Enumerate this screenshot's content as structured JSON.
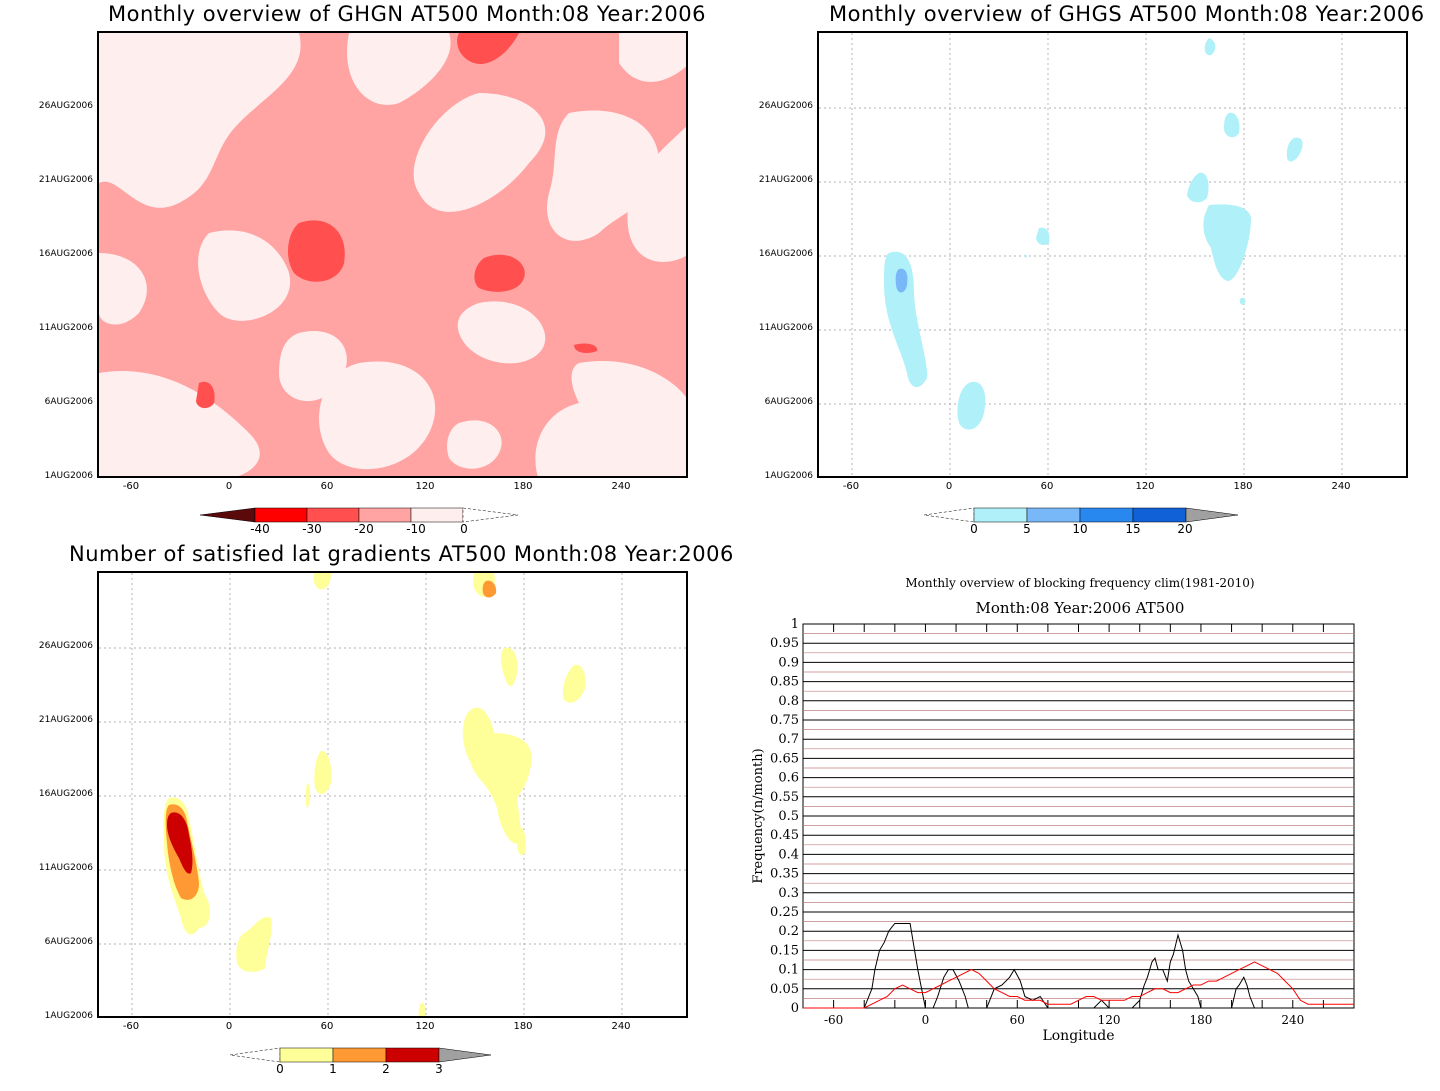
{
  "panels": {
    "ghgn": {
      "title": "Monthly overview of GHGN AT500 Month:08 Year:2006",
      "colorbar": {
        "labels": [
          "-40",
          "-30",
          "-20",
          "-10",
          "0"
        ],
        "colors": [
          "#5a0a0a",
          "#ff0000",
          "#ff4f4f",
          "#ffa3a3",
          "#ffeeee"
        ]
      }
    },
    "ghgs": {
      "title": "Monthly overview of GHGS AT500 Month:08 Year:2006",
      "colorbar": {
        "labels": [
          "0",
          "5",
          "10",
          "15",
          "20"
        ],
        "colors": [
          "#b0f0f8",
          "#78b8f8",
          "#2888f0",
          "#1060d8",
          "#a0a0a0"
        ]
      }
    },
    "latgrad": {
      "title": "Number of satisfied lat gradients AT500 Month:08 Year:2006",
      "colorbar": {
        "labels": [
          "0",
          "1",
          "2",
          "3"
        ],
        "colors": [
          "#ffff99",
          "#ff9933",
          "#cc0000",
          "#a0a0a0"
        ]
      }
    },
    "blocking": {
      "title": "Monthly overview of blocking frequency clim(1981-2010)",
      "subtitle": "Month:08 Year:2006  AT500"
    }
  },
  "chart_data": [
    {
      "type": "heatmap",
      "title": "Monthly overview of GHGN AT500 Month:08 Year:2006",
      "x_ticks": [
        "-60",
        "0",
        "60",
        "120",
        "180",
        "240"
      ],
      "y_ticks": [
        "1AUG2006",
        "6AUG2006",
        "11AUG2006",
        "16AUG2006",
        "21AUG2006",
        "26AUG2006"
      ],
      "xlim": [
        -80,
        280
      ],
      "levels": [
        -40,
        -30,
        -20,
        -10,
        0
      ]
    },
    {
      "type": "heatmap",
      "title": "Monthly overview of GHGS AT500 Month:08 Year:2006",
      "x_ticks": [
        "-60",
        "0",
        "60",
        "120",
        "180",
        "240"
      ],
      "y_ticks": [
        "1AUG2006",
        "6AUG2006",
        "11AUG2006",
        "16AUG2006",
        "21AUG2006",
        "26AUG2006"
      ],
      "xlim": [
        -80,
        280
      ],
      "levels": [
        0,
        5,
        10,
        15,
        20
      ]
    },
    {
      "type": "heatmap",
      "title": "Number of satisfied lat gradients AT500 Month:08 Year:2006",
      "x_ticks": [
        "-60",
        "0",
        "60",
        "120",
        "180",
        "240"
      ],
      "y_ticks": [
        "1AUG2006",
        "6AUG2006",
        "11AUG2006",
        "16AUG2006",
        "21AUG2006",
        "26AUG2006"
      ],
      "xlim": [
        -80,
        280
      ],
      "levels": [
        0,
        1,
        2,
        3
      ]
    },
    {
      "type": "line",
      "title": "Monthly overview of blocking frequency clim(1981-2010)",
      "subtitle": "Month:08 Year:2006  AT500",
      "xlabel": "Longitude",
      "ylabel": "Frequency(n/month)",
      "x_ticks": [
        "-60",
        "0",
        "60",
        "120",
        "180",
        "240"
      ],
      "y_ticks": [
        "0",
        "0.05",
        "0.1",
        "0.15",
        "0.2",
        "0.25",
        "0.3",
        "0.35",
        "0.4",
        "0.45",
        "0.5",
        "0.55",
        "0.6",
        "0.65",
        "0.7",
        "0.75",
        "0.8",
        "0.85",
        "0.9",
        "0.95",
        "1"
      ],
      "xlim": [
        -80,
        280
      ],
      "ylim": [
        0,
        1
      ],
      "series": [
        {
          "color": "#000000",
          "x": [
            -80,
            -40,
            -35,
            -33,
            -30,
            -27,
            -24,
            -20,
            -15,
            -10,
            -5,
            0,
            5,
            8,
            12,
            15,
            18,
            22,
            26,
            28,
            30,
            35,
            40,
            45,
            50,
            55,
            58,
            62,
            65,
            70,
            75,
            80,
            85,
            90,
            100,
            110,
            115,
            120,
            125,
            130,
            135,
            140,
            143,
            145,
            148,
            150,
            152,
            155,
            158,
            160,
            162,
            165,
            168,
            170,
            172,
            175,
            178,
            180,
            183,
            185,
            190,
            195,
            200,
            203,
            205,
            208,
            210,
            212,
            215,
            280
          ],
          "y": [
            0,
            0,
            0.05,
            0.1,
            0.15,
            0.17,
            0.2,
            0.22,
            0.22,
            0.22,
            0.1,
            0,
            0,
            0.03,
            0.08,
            0.1,
            0.1,
            0.07,
            0.03,
            0,
            0,
            0,
            0,
            0.05,
            0.06,
            0.08,
            0.1,
            0.07,
            0.03,
            0.02,
            0.03,
            0,
            0,
            0,
            0,
            0,
            0.02,
            0,
            0,
            0,
            0,
            0.02,
            0.06,
            0.08,
            0.12,
            0.13,
            0.1,
            0.1,
            0.07,
            0.12,
            0.14,
            0.19,
            0.15,
            0.1,
            0.07,
            0.05,
            0.03,
            0,
            0,
            0,
            0,
            0,
            0,
            0.05,
            0.06,
            0.08,
            0.06,
            0.03,
            0,
            0
          ]
        },
        {
          "color": "#ff0000",
          "x": [
            -80,
            -40,
            -30,
            -25,
            -20,
            -15,
            -10,
            -5,
            0,
            5,
            10,
            15,
            20,
            25,
            30,
            35,
            40,
            45,
            50,
            55,
            60,
            65,
            70,
            75,
            80,
            85,
            90,
            95,
            100,
            105,
            110,
            115,
            120,
            125,
            130,
            135,
            140,
            145,
            150,
            155,
            160,
            165,
            170,
            175,
            180,
            185,
            190,
            195,
            200,
            205,
            210,
            215,
            220,
            225,
            230,
            235,
            240,
            245,
            250,
            255,
            260,
            265,
            270,
            275,
            280
          ],
          "y": [
            0,
            0,
            0.02,
            0.03,
            0.05,
            0.06,
            0.05,
            0.04,
            0.04,
            0.05,
            0.06,
            0.07,
            0.08,
            0.09,
            0.1,
            0.09,
            0.07,
            0.05,
            0.04,
            0.03,
            0.03,
            0.02,
            0.02,
            0.02,
            0.01,
            0.01,
            0.01,
            0.01,
            0.02,
            0.03,
            0.03,
            0.02,
            0.02,
            0.02,
            0.02,
            0.03,
            0.03,
            0.04,
            0.05,
            0.05,
            0.04,
            0.04,
            0.05,
            0.06,
            0.06,
            0.07,
            0.07,
            0.08,
            0.09,
            0.1,
            0.11,
            0.12,
            0.11,
            0.1,
            0.09,
            0.07,
            0.05,
            0.02,
            0.01,
            0.01,
            0.01,
            0.01,
            0.01,
            0.01,
            0.01
          ]
        }
      ]
    }
  ]
}
